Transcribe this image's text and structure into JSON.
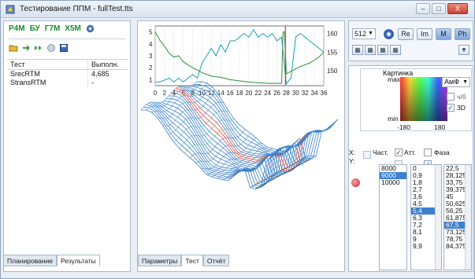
{
  "window": {
    "title": "Тестирование ППМ - fullTest.tts",
    "minimize": "–",
    "maximize": "□",
    "close": "X"
  },
  "left": {
    "modules": [
      "P4M",
      "БУ",
      "Г7М",
      "Х5М"
    ],
    "table": {
      "headers": [
        "Тест",
        "Выполн."
      ],
      "rows": [
        {
          "name": "SrecRTM",
          "value": "4,685"
        },
        {
          "name": "StransRTM",
          "value": "-"
        }
      ]
    },
    "tabs": [
      "Планирование",
      "Результаты"
    ],
    "active_tab": "Результаты"
  },
  "center": {
    "tabs": [
      "Параметры",
      "Тест",
      "Отчёт"
    ],
    "active_tab": "Тест",
    "plot": {
      "left_axis_ticks": [
        "5",
        "4",
        "3",
        "2",
        "1"
      ],
      "right_axis_ticks": [
        "160",
        "155",
        "150"
      ],
      "x_ticks": [
        "0",
        "2",
        "4",
        "6",
        "8",
        "10",
        "12",
        "14",
        "16",
        "18",
        "20",
        "22",
        "24",
        "26",
        "28",
        "30",
        "32",
        "34",
        "36"
      ],
      "x_range": [
        0,
        36
      ],
      "y_left_range": [
        0.5,
        5.5
      ],
      "y_right_range": [
        146,
        162
      ],
      "green_curve": [
        [
          0,
          5.0
        ],
        [
          1,
          4.3
        ],
        [
          2,
          3.8
        ],
        [
          3,
          3.2
        ],
        [
          4,
          2.9
        ],
        [
          5,
          3.0
        ],
        [
          6,
          2.5
        ],
        [
          8,
          2.0
        ],
        [
          10,
          1.6
        ],
        [
          12,
          1.3
        ],
        [
          14,
          1.2
        ],
        [
          16,
          1.0
        ],
        [
          18,
          0.9
        ],
        [
          20,
          0.8
        ],
        [
          22,
          0.75
        ],
        [
          24,
          0.7
        ],
        [
          26,
          0.7
        ],
        [
          27,
          0.7
        ],
        [
          27.3,
          5.0
        ],
        [
          27.6,
          5.0
        ],
        [
          28,
          1.5
        ],
        [
          29,
          1.7
        ],
        [
          31,
          2.1
        ],
        [
          33,
          2.4
        ],
        [
          35,
          2.9
        ],
        [
          36,
          3.3
        ]
      ],
      "cyan_curve": [
        [
          0,
          147
        ],
        [
          1,
          147
        ],
        [
          2,
          147.5
        ],
        [
          3,
          148
        ],
        [
          4,
          147
        ],
        [
          5,
          148
        ],
        [
          6,
          147
        ],
        [
          7,
          148
        ],
        [
          8,
          149
        ],
        [
          9,
          148
        ],
        [
          10,
          152
        ],
        [
          11,
          154
        ],
        [
          12,
          156
        ],
        [
          13,
          154
        ],
        [
          14,
          157
        ],
        [
          15,
          155
        ],
        [
          16,
          158
        ],
        [
          17,
          158
        ],
        [
          18,
          159
        ],
        [
          19,
          160
        ],
        [
          20,
          159
        ],
        [
          21,
          161
        ],
        [
          22,
          159
        ],
        [
          23,
          160
        ],
        [
          24,
          159
        ],
        [
          25,
          160
        ],
        [
          26,
          158
        ],
        [
          27,
          159
        ],
        [
          28,
          146.5
        ],
        [
          29,
          148
        ],
        [
          30,
          159
        ],
        [
          31,
          160
        ],
        [
          32,
          159
        ],
        [
          33,
          158
        ],
        [
          34,
          157
        ],
        [
          35,
          156
        ],
        [
          36,
          155
        ]
      ],
      "marker_x": 27.8,
      "colors": {
        "green": "#2b8f3a",
        "cyan": "#1aa0b5",
        "red": "#d62020"
      }
    }
  },
  "right": {
    "size_select": "512",
    "mode_buttons": [
      "Re",
      "Im",
      "M",
      "Ph"
    ],
    "active_modes": [
      "M",
      "Ph"
    ],
    "kartinka_label": "Картинка",
    "max_label": "max",
    "min_label": "min",
    "range_low": "-180",
    "range_high": "180",
    "amp_phase_select": "АмФ",
    "check_wb": "ч/б",
    "check_3d": "3D",
    "check_3d_checked": true,
    "x_label": "X:",
    "y_label": "Y:",
    "filter_labels": [
      "Част.",
      "Атт.",
      "Фаза"
    ],
    "freq_list": [
      "8000",
      "9000",
      "10000"
    ],
    "freq_selected": "9000",
    "att_list": [
      "0",
      "0,9",
      "1,8",
      "2,7",
      "3,6",
      "4,5",
      "5,4",
      "6,3",
      "7,2",
      "8,1",
      "9",
      "9,9"
    ],
    "att_selected": "5,4",
    "phase_list": [
      "22,5",
      "28,125",
      "33,75",
      "39,375",
      "45",
      "50,625",
      "56,25",
      "61,875",
      "67,5",
      "73,125",
      "78,75",
      "84,375"
    ],
    "phase_selected": "67,5"
  }
}
